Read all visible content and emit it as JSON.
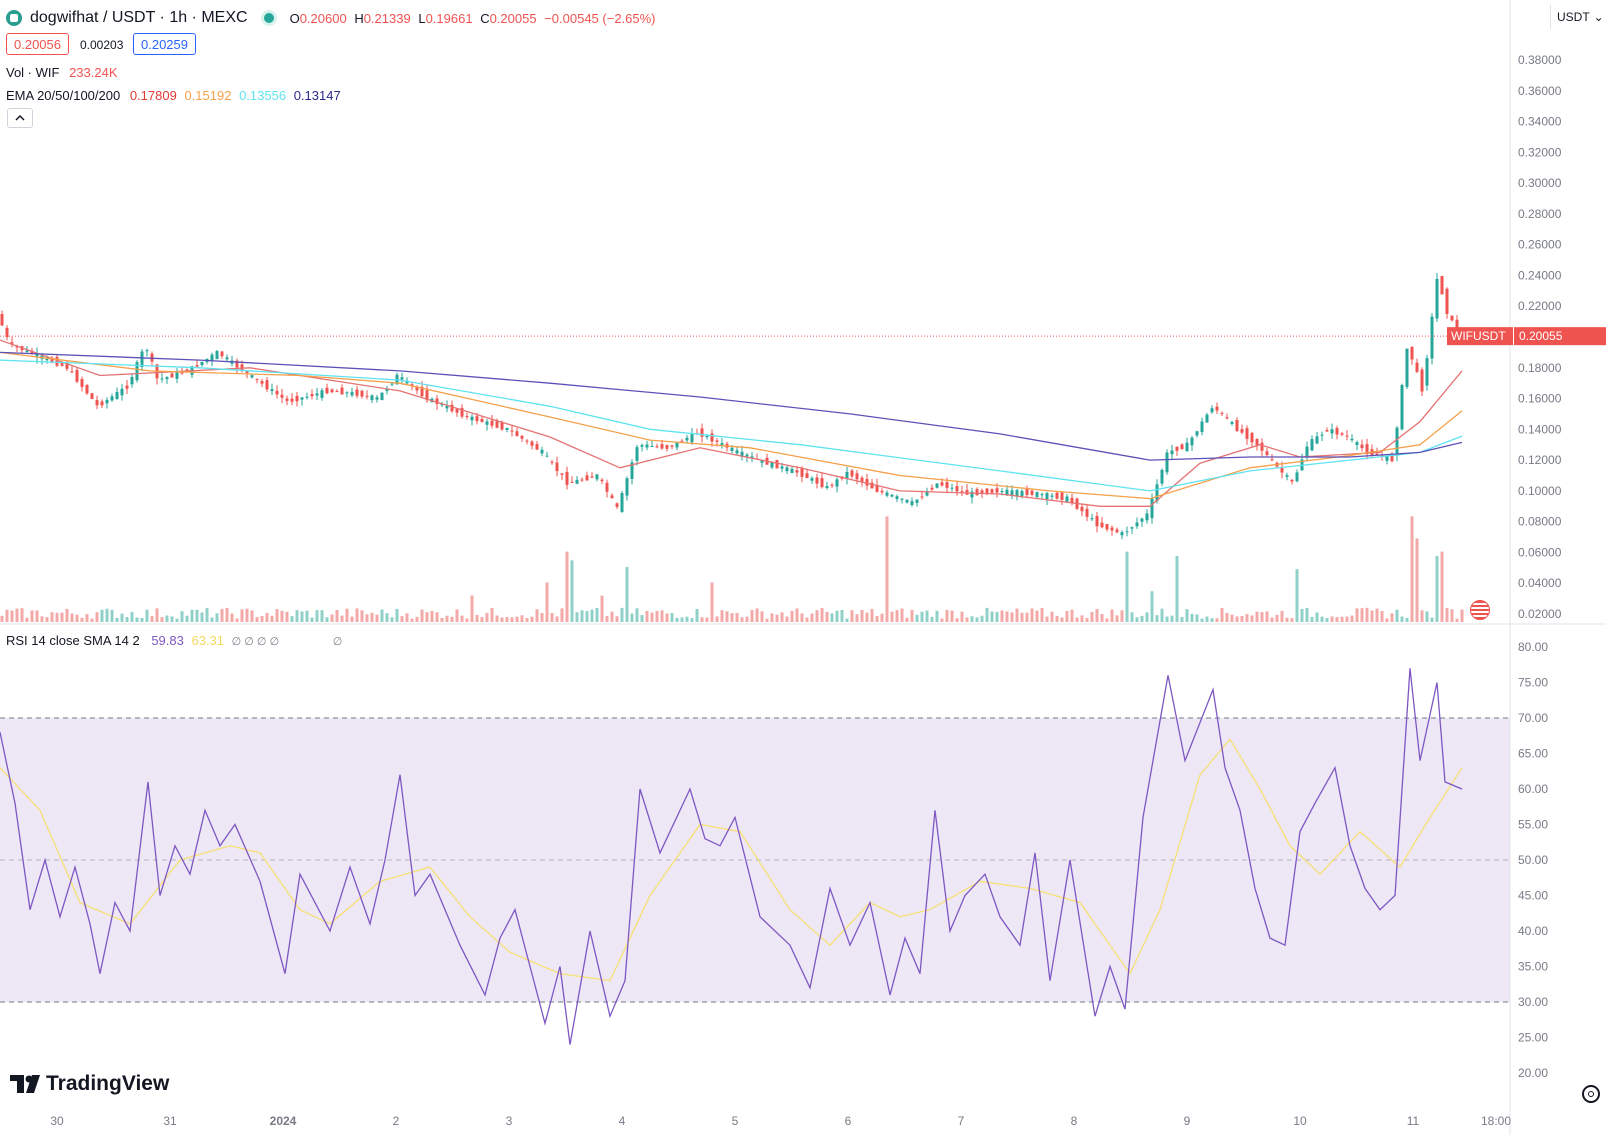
{
  "header": {
    "pair": "dogwifhat / USDT · 1h · MEXC",
    "open_label": "O",
    "open": "0.20600",
    "high_label": "H",
    "high": "0.21339",
    "low_label": "L",
    "low": "0.19661",
    "close_label": "C",
    "close": "0.20055",
    "change": "−0.00545 (−2.65%)",
    "bid": "0.20056",
    "spread": "0.00203",
    "ask": "0.20259",
    "currency": "USDT",
    "vol_label": "Vol · WIF",
    "vol_value": "233.24K",
    "ema_label": "EMA 20/50/100/200",
    "ema_values": [
      "0.17809",
      "0.15192",
      "0.13556",
      "0.13147"
    ],
    "rsi_label": "RSI 14 close SMA 14 2",
    "rsi_value": "59.83",
    "rsi_sma_value": "63.31",
    "rsi_na": "∅ ∅ ∅ ∅",
    "rsi_na2": "∅",
    "collapse_icon": "chevron-up-icon"
  },
  "colors": {
    "up": "#26a69a",
    "down": "#ef5350",
    "ema20": "#e57373",
    "ema50": "#f5a04a",
    "ema100": "#5ee3f0",
    "ema200": "#5b52b8",
    "rsi": "#7e57c2",
    "rsi_sma": "#f7e074",
    "rsi_band": "#ede7f6",
    "price_badge": "#ef5350"
  },
  "price_badge": {
    "symbol": "WIFUSDT",
    "value": "0.20055"
  },
  "brand": "TradingView",
  "chart_data": {
    "type": "candlestick",
    "symbol": "WIFUSDT",
    "interval": "1h",
    "y_axis": {
      "ticks": [
        "0.38000",
        "0.36000",
        "0.34000",
        "0.32000",
        "0.30000",
        "0.28000",
        "0.26000",
        "0.24000",
        "0.22000",
        "0.20000",
        "0.18000",
        "0.16000",
        "0.14000",
        "0.12000",
        "0.10000",
        "0.08000",
        "0.06000",
        "0.04000",
        "0.02000"
      ],
      "range": [
        0.02,
        0.38
      ]
    },
    "x_axis": {
      "ticks": [
        "30",
        "31",
        "2024",
        "2",
        "3",
        "4",
        "5",
        "6",
        "7",
        "8",
        "9",
        "10",
        "11",
        "18:00"
      ]
    },
    "last_price": 0.20055,
    "price_path": [
      [
        0,
        0.215
      ],
      [
        12,
        0.195
      ],
      [
        40,
        0.188
      ],
      [
        70,
        0.18
      ],
      [
        100,
        0.155
      ],
      [
        130,
        0.168
      ],
      [
        148,
        0.195
      ],
      [
        160,
        0.172
      ],
      [
        190,
        0.178
      ],
      [
        220,
        0.19
      ],
      [
        250,
        0.176
      ],
      [
        290,
        0.158
      ],
      [
        330,
        0.165
      ],
      [
        360,
        0.163
      ],
      [
        380,
        0.16
      ],
      [
        400,
        0.175
      ],
      [
        430,
        0.16
      ],
      [
        470,
        0.148
      ],
      [
        510,
        0.14
      ],
      [
        545,
        0.125
      ],
      [
        570,
        0.105
      ],
      [
        600,
        0.11
      ],
      [
        620,
        0.088
      ],
      [
        640,
        0.13
      ],
      [
        670,
        0.128
      ],
      [
        700,
        0.138
      ],
      [
        740,
        0.125
      ],
      [
        770,
        0.118
      ],
      [
        800,
        0.112
      ],
      [
        830,
        0.102
      ],
      [
        850,
        0.112
      ],
      [
        880,
        0.1
      ],
      [
        915,
        0.092
      ],
      [
        940,
        0.105
      ],
      [
        970,
        0.098
      ],
      [
        1000,
        0.1
      ],
      [
        1040,
        0.098
      ],
      [
        1070,
        0.095
      ],
      [
        1100,
        0.078
      ],
      [
        1125,
        0.072
      ],
      [
        1150,
        0.085
      ],
      [
        1170,
        0.125
      ],
      [
        1190,
        0.13
      ],
      [
        1215,
        0.155
      ],
      [
        1240,
        0.14
      ],
      [
        1260,
        0.13
      ],
      [
        1280,
        0.115
      ],
      [
        1295,
        0.105
      ],
      [
        1310,
        0.13
      ],
      [
        1330,
        0.14
      ],
      [
        1350,
        0.135
      ],
      [
        1370,
        0.125
      ],
      [
        1395,
        0.12
      ],
      [
        1410,
        0.195
      ],
      [
        1425,
        0.165
      ],
      [
        1440,
        0.24
      ],
      [
        1450,
        0.215
      ],
      [
        1462,
        0.20055
      ]
    ],
    "ema_series": [
      {
        "name": "EMA 20",
        "last": 0.17809,
        "path": [
          [
            0,
            0.198
          ],
          [
            100,
            0.175
          ],
          [
            250,
            0.18
          ],
          [
            400,
            0.165
          ],
          [
            550,
            0.135
          ],
          [
            620,
            0.115
          ],
          [
            700,
            0.128
          ],
          [
            800,
            0.115
          ],
          [
            900,
            0.1
          ],
          [
            1000,
            0.098
          ],
          [
            1100,
            0.09
          ],
          [
            1150,
            0.09
          ],
          [
            1200,
            0.118
          ],
          [
            1260,
            0.13
          ],
          [
            1300,
            0.122
          ],
          [
            1380,
            0.125
          ],
          [
            1420,
            0.145
          ],
          [
            1462,
            0.178
          ]
        ]
      },
      {
        "name": "EMA 50",
        "last": 0.15192,
        "path": [
          [
            0,
            0.19
          ],
          [
            150,
            0.178
          ],
          [
            300,
            0.175
          ],
          [
            400,
            0.17
          ],
          [
            550,
            0.148
          ],
          [
            650,
            0.133
          ],
          [
            750,
            0.128
          ],
          [
            900,
            0.11
          ],
          [
            1050,
            0.1
          ],
          [
            1150,
            0.095
          ],
          [
            1250,
            0.115
          ],
          [
            1350,
            0.123
          ],
          [
            1420,
            0.13
          ],
          [
            1462,
            0.152
          ]
        ]
      },
      {
        "name": "EMA 100",
        "last": 0.13556,
        "path": [
          [
            0,
            0.185
          ],
          [
            200,
            0.18
          ],
          [
            400,
            0.172
          ],
          [
            550,
            0.155
          ],
          [
            650,
            0.14
          ],
          [
            800,
            0.13
          ],
          [
            1000,
            0.113
          ],
          [
            1150,
            0.1
          ],
          [
            1250,
            0.113
          ],
          [
            1350,
            0.12
          ],
          [
            1420,
            0.125
          ],
          [
            1462,
            0.1356
          ]
        ]
      },
      {
        "name": "EMA 200",
        "last": 0.13147,
        "path": [
          [
            0,
            0.19
          ],
          [
            200,
            0.185
          ],
          [
            400,
            0.178
          ],
          [
            550,
            0.17
          ],
          [
            700,
            0.161
          ],
          [
            850,
            0.15
          ],
          [
            1000,
            0.137
          ],
          [
            1150,
            0.12
          ],
          [
            1250,
            0.122
          ],
          [
            1350,
            0.122
          ],
          [
            1420,
            0.125
          ],
          [
            1462,
            0.1315
          ]
        ]
      }
    ],
    "volume_highlights": [
      [
        470,
        12
      ],
      [
        545,
        18
      ],
      [
        565,
        32
      ],
      [
        570,
        28
      ],
      [
        600,
        12
      ],
      [
        627,
        25
      ],
      [
        712,
        18
      ],
      [
        885,
        48
      ],
      [
        1125,
        32
      ],
      [
        1148,
        14
      ],
      [
        1173,
        30
      ],
      [
        1295,
        24
      ],
      [
        1410,
        48
      ],
      [
        1413,
        38
      ],
      [
        1437,
        30
      ],
      [
        1442,
        32
      ]
    ],
    "rsi": {
      "name": "RSI 14 close SMA 14 2",
      "ticks": [
        "80.00",
        "75.00",
        "70.00",
        "65.00",
        "60.00",
        "55.00",
        "50.00",
        "45.00",
        "40.00",
        "35.00",
        "30.00",
        "25.00",
        "20.00"
      ],
      "range": [
        20,
        80
      ],
      "levels": [
        70,
        50,
        30
      ],
      "last": 59.83,
      "sma_last": 63.31,
      "rsi_path": [
        [
          0,
          68
        ],
        [
          15,
          58
        ],
        [
          30,
          43
        ],
        [
          45,
          50
        ],
        [
          60,
          42
        ],
        [
          75,
          49
        ],
        [
          90,
          41
        ],
        [
          100,
          34
        ],
        [
          115,
          44
        ],
        [
          130,
          40
        ],
        [
          148,
          61
        ],
        [
          160,
          45
        ],
        [
          175,
          52
        ],
        [
          190,
          48
        ],
        [
          205,
          57
        ],
        [
          220,
          52
        ],
        [
          235,
          55
        ],
        [
          260,
          47
        ],
        [
          285,
          34
        ],
        [
          300,
          48
        ],
        [
          330,
          40
        ],
        [
          350,
          49
        ],
        [
          370,
          41
        ],
        [
          385,
          50
        ],
        [
          400,
          62
        ],
        [
          415,
          45
        ],
        [
          430,
          48
        ],
        [
          460,
          38
        ],
        [
          485,
          31
        ],
        [
          500,
          39
        ],
        [
          515,
          43
        ],
        [
          530,
          35
        ],
        [
          545,
          27
        ],
        [
          560,
          35
        ],
        [
          570,
          24
        ],
        [
          590,
          40
        ],
        [
          610,
          28
        ],
        [
          625,
          33
        ],
        [
          640,
          60
        ],
        [
          660,
          51
        ],
        [
          690,
          60
        ],
        [
          705,
          53
        ],
        [
          720,
          52
        ],
        [
          735,
          56
        ],
        [
          760,
          42
        ],
        [
          790,
          38
        ],
        [
          810,
          32
        ],
        [
          830,
          46
        ],
        [
          850,
          38
        ],
        [
          870,
          44
        ],
        [
          890,
          31
        ],
        [
          905,
          39
        ],
        [
          920,
          34
        ],
        [
          935,
          57
        ],
        [
          950,
          40
        ],
        [
          965,
          45
        ],
        [
          985,
          48
        ],
        [
          1000,
          42
        ],
        [
          1020,
          38
        ],
        [
          1035,
          51
        ],
        [
          1050,
          33
        ],
        [
          1070,
          50
        ],
        [
          1095,
          28
        ],
        [
          1110,
          35
        ],
        [
          1125,
          29
        ],
        [
          1143,
          56
        ],
        [
          1168,
          76
        ],
        [
          1185,
          64
        ],
        [
          1213,
          74
        ],
        [
          1225,
          63
        ],
        [
          1240,
          57
        ],
        [
          1255,
          46
        ],
        [
          1270,
          39
        ],
        [
          1285,
          38
        ],
        [
          1300,
          54
        ],
        [
          1315,
          58
        ],
        [
          1335,
          63
        ],
        [
          1350,
          52
        ],
        [
          1365,
          46
        ],
        [
          1380,
          43
        ],
        [
          1395,
          45
        ],
        [
          1410,
          77
        ],
        [
          1420,
          64
        ],
        [
          1437,
          75
        ],
        [
          1445,
          61
        ],
        [
          1462,
          60
        ]
      ],
      "sma_path": [
        [
          0,
          63
        ],
        [
          40,
          57
        ],
        [
          80,
          44
        ],
        [
          130,
          41
        ],
        [
          180,
          50
        ],
        [
          230,
          52
        ],
        [
          260,
          51
        ],
        [
          300,
          43
        ],
        [
          330,
          41
        ],
        [
          380,
          47
        ],
        [
          430,
          49
        ],
        [
          470,
          42
        ],
        [
          510,
          37
        ],
        [
          560,
          34
        ],
        [
          610,
          33
        ],
        [
          650,
          45
        ],
        [
          700,
          55
        ],
        [
          740,
          54
        ],
        [
          790,
          43
        ],
        [
          830,
          38
        ],
        [
          870,
          44
        ],
        [
          900,
          42
        ],
        [
          930,
          43
        ],
        [
          980,
          47
        ],
        [
          1030,
          46
        ],
        [
          1080,
          44
        ],
        [
          1130,
          34
        ],
        [
          1160,
          43
        ],
        [
          1200,
          62
        ],
        [
          1230,
          67
        ],
        [
          1260,
          60
        ],
        [
          1290,
          52
        ],
        [
          1320,
          48
        ],
        [
          1360,
          54
        ],
        [
          1400,
          49
        ],
        [
          1430,
          56
        ],
        [
          1462,
          63
        ]
      ]
    }
  }
}
